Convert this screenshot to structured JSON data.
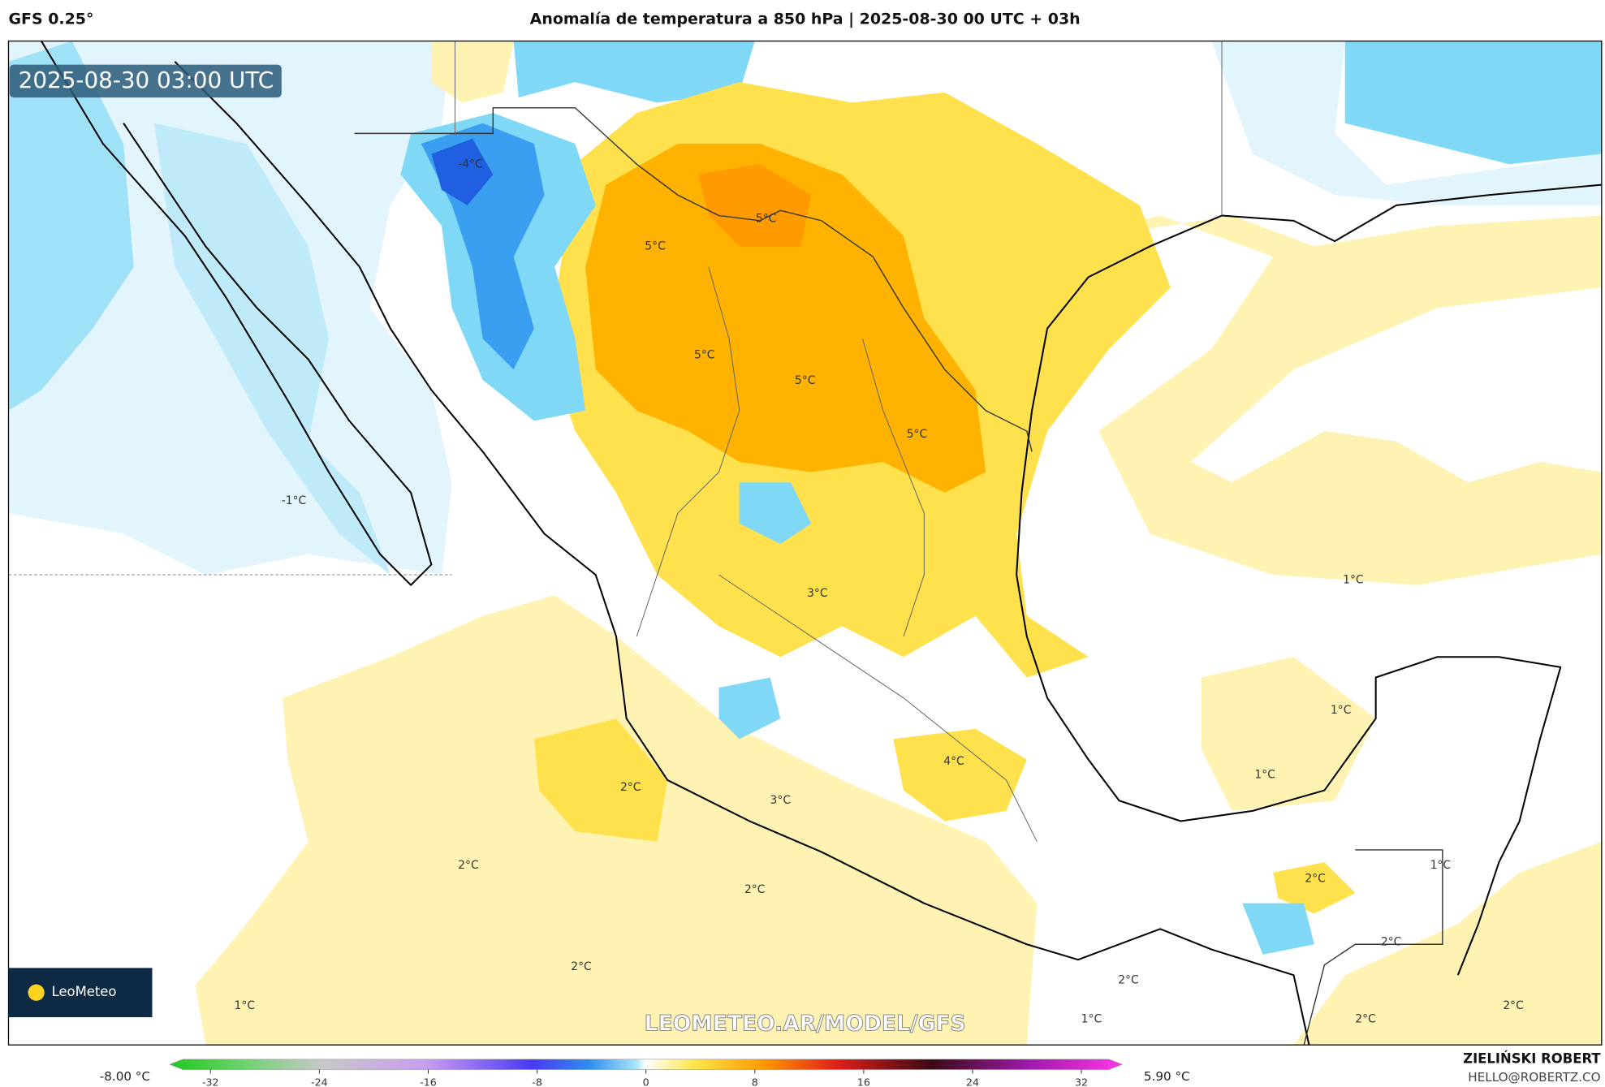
{
  "header": {
    "model": "GFS 0.25°",
    "title": "Anomalía de temperatura a 850 hPa | 2025-08-30 00 UTC + 03h",
    "valid_time": "2025-08-30 03:00 UTC"
  },
  "contour_labels": [
    "-4°C",
    "5°C",
    "5°C",
    "5°C",
    "5°C",
    "5°C",
    "-1°C",
    "3°C",
    "1°C",
    "1°C",
    "1°C",
    "4°C",
    "2°C",
    "3°C",
    "2°C",
    "2°C",
    "2°C",
    "1°C",
    "2°C",
    "2°C",
    "2°C",
    "1°C",
    "1°C",
    "2°C",
    "2°C"
  ],
  "watermark": "LEOMETEO.AR/MODEL/GFS",
  "logo": "LeoMeteo",
  "colorbar": {
    "min_label": "-8.00 °C",
    "max_label": "5.90 °C",
    "range": [
      -35,
      35
    ],
    "ticks": [
      -32,
      -24,
      -16,
      -8,
      0,
      8,
      16,
      24,
      32
    ]
  },
  "footer": {
    "author": "ZIELIŃSKI ROBERT",
    "email": "HELLO@ROBERTZ.CO"
  }
}
